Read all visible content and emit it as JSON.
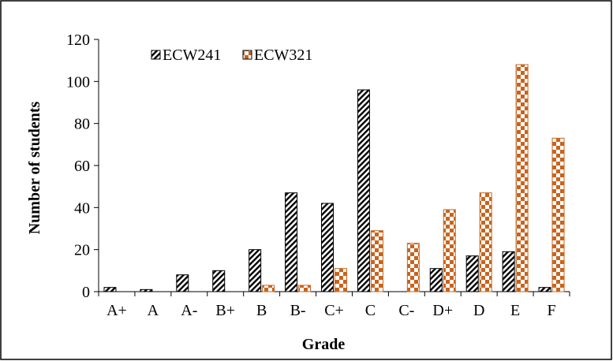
{
  "chart_data": {
    "type": "bar",
    "categories": [
      "A+",
      "A",
      "A-",
      "B+",
      "B",
      "B-",
      "C+",
      "C",
      "C-",
      "D+",
      "D",
      "E",
      "F"
    ],
    "series": [
      {
        "name": "ECW241",
        "values": [
          2,
          1,
          8,
          10,
          20,
          47,
          42,
          96,
          0,
          11,
          17,
          19,
          2
        ],
        "pattern": "black-diagonal-hatch"
      },
      {
        "name": "ECW321",
        "values": [
          0,
          0,
          0,
          0,
          3,
          3,
          11,
          29,
          23,
          39,
          47,
          108,
          73
        ],
        "pattern": "orange-checkerboard"
      }
    ],
    "xlabel": "Grade",
    "ylabel": "Number of students",
    "ylim": [
      0,
      120
    ],
    "yticks": [
      0,
      20,
      40,
      60,
      80,
      100,
      120
    ],
    "grid": false,
    "legend_position": "top-left",
    "colors": {
      "hatch": "#000000",
      "checker": "#c8641e",
      "background": "#ffffff"
    }
  }
}
